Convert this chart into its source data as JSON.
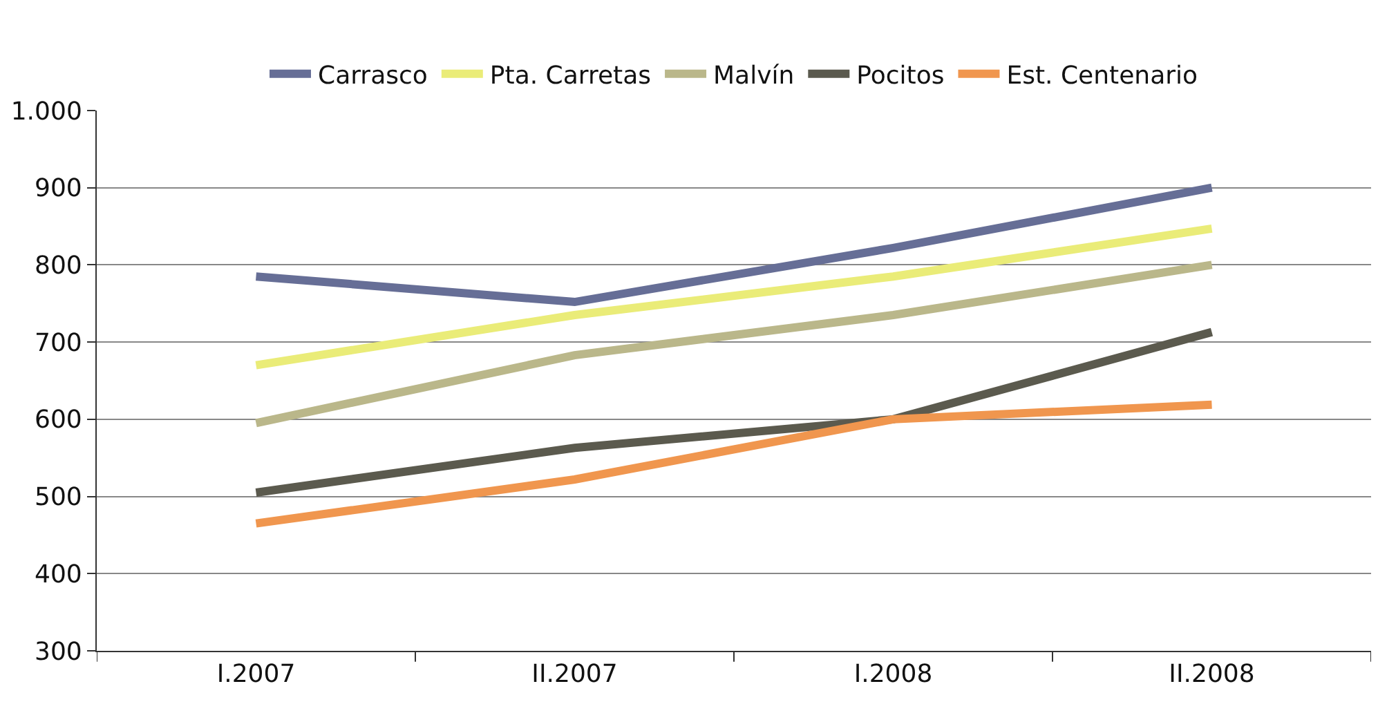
{
  "chart_data": {
    "type": "line",
    "categories": [
      "I.2007",
      "II.2007",
      "I.2008",
      "II.2008"
    ],
    "series": [
      {
        "name": "Carrasco",
        "color": "#666e96",
        "values": [
          785,
          752,
          822,
          900
        ]
      },
      {
        "name": "Pta. Carretas",
        "color": "#eaec78",
        "values": [
          670,
          735,
          785,
          847
        ]
      },
      {
        "name": "Malvín",
        "color": "#bab78a",
        "values": [
          595,
          683,
          735,
          800
        ]
      },
      {
        "name": "Pocitos",
        "color": "#5b5a4e",
        "values": [
          505,
          563,
          600,
          713
        ]
      },
      {
        "name": "Est. Centenario",
        "color": "#f0964e",
        "values": [
          465,
          522,
          600,
          619
        ]
      }
    ],
    "ylim": [
      300,
      1000
    ],
    "yticks": [
      300,
      400,
      500,
      600,
      700,
      800,
      900,
      {
        "value": 1000,
        "label": "1.000"
      }
    ],
    "grid": "y",
    "legend": "top",
    "marker": "none",
    "line_style": "solid"
  }
}
